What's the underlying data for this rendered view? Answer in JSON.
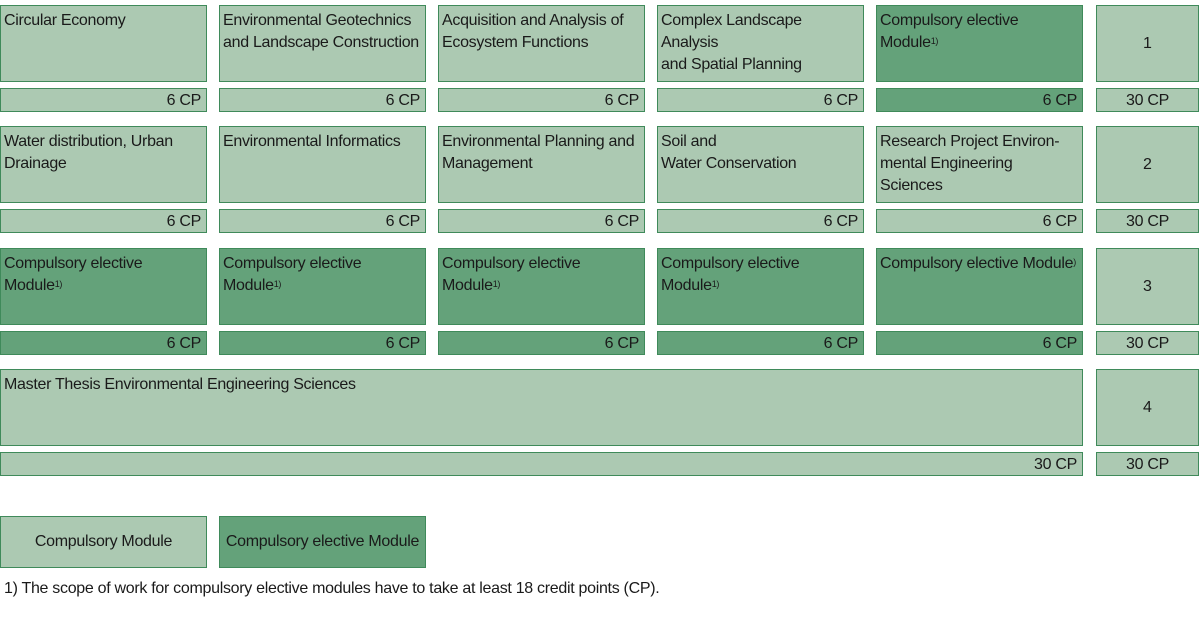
{
  "semesters": [
    {
      "number": "1",
      "total": "30 CP",
      "modules": [
        {
          "title": "Circular Economy",
          "note": "",
          "cp": "6 CP",
          "kind": "compulsory"
        },
        {
          "title": "Environmental Geotechnics\nand Landscape Construction",
          "note": "",
          "cp": "6 CP",
          "kind": "compulsory"
        },
        {
          "title": "Acquisition and Analysis of\nEcosystem Functions",
          "note": "",
          "cp": "6 CP",
          "kind": "compulsory"
        },
        {
          "title": "Complex Landscape Analysis\nand Spatial Planning",
          "note": "",
          "cp": "6 CP",
          "kind": "compulsory"
        },
        {
          "title": "Compulsory elective Module",
          "note": "1)",
          "cp": "6 CP",
          "kind": "elective"
        }
      ]
    },
    {
      "number": "2",
      "total": "30 CP",
      "modules": [
        {
          "title": "Water distribution, Urban\nDrainage",
          "note": "",
          "cp": "6 CP",
          "kind": "compulsory"
        },
        {
          "title": "Environmental Informatics",
          "note": "",
          "cp": "6 CP",
          "kind": "compulsory"
        },
        {
          "title": "Environmental Planning and\nManagement",
          "note": "",
          "cp": "6 CP",
          "kind": "compulsory"
        },
        {
          "title": "Soil and\nWater Conservation",
          "note": "",
          "cp": "6 CP",
          "kind": "compulsory"
        },
        {
          "title": "Research Project Environ-\nmental Engineering Sciences",
          "note": "",
          "cp": "6 CP",
          "kind": "compulsory"
        }
      ]
    },
    {
      "number": "3",
      "total": "30 CP",
      "modules": [
        {
          "title": "Compulsory elective Module",
          "note": "1)",
          "cp": "6 CP",
          "kind": "elective"
        },
        {
          "title": "Compulsory elective Module",
          "note": "1)",
          "cp": "6 CP",
          "kind": "elective"
        },
        {
          "title": "Compulsory elective Module",
          "note": "1)",
          "cp": "6 CP",
          "kind": "elective"
        },
        {
          "title": "Compulsory elective Module",
          "note": "1)",
          "cp": "6 CP",
          "kind": "elective"
        },
        {
          "title": "Compulsory elective Module",
          "note": ")",
          "cp": "6 CP",
          "kind": "elective"
        }
      ]
    },
    {
      "number": "4",
      "total": "30 CP",
      "thesis": {
        "title": "Master Thesis Environmental Engineering Sciences",
        "cp": "30 CP",
        "kind": "compulsory"
      }
    }
  ],
  "legend": {
    "compulsory": "Compulsory Module",
    "elective": "Compulsory elective Module"
  },
  "footnote": "1) The scope of work for compulsory elective modules have to take at least 18 credit points (CP).",
  "colors": {
    "compulsory_fill": "#acc9b2",
    "elective_fill": "#64a27a",
    "border": "#3f8a5a"
  }
}
